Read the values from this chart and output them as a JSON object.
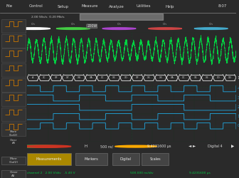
{
  "bg_dark": "#2a2a2a",
  "bg_darker": "#1a1a1a",
  "screen_bg": "#050510",
  "green_wave": "#00dd44",
  "blue_digital": "#2299cc",
  "white_bus": "#cccccc",
  "menu_bg": "#444444",
  "sidebar_bg": "#2a2a2a",
  "bottom_bar_bg": "#1e1e1e",
  "status_bar_bg": "#2a2a2a",
  "tab_active": "#aa8800",
  "tab_inactive": "#444444",
  "grid_color": "#223322",
  "menu_items": [
    "File",
    "Control",
    "Setup",
    "Measure",
    "Analyze",
    "Utilities",
    "Help"
  ],
  "time_text": "8:07",
  "bottom_tabs": [
    "Measurements",
    "Markers",
    "Digital",
    "Scales"
  ],
  "analog_freq": 28,
  "n_digital": 5,
  "digital_periods": [
    0.125,
    0.25,
    0.5,
    0.25,
    0.125
  ],
  "digital_phases": [
    0.0,
    0.0,
    0.0,
    0.125,
    0.0625
  ],
  "channel_labels": [
    "4",
    "3",
    "2",
    "1",
    "0"
  ],
  "bus_label": "1"
}
